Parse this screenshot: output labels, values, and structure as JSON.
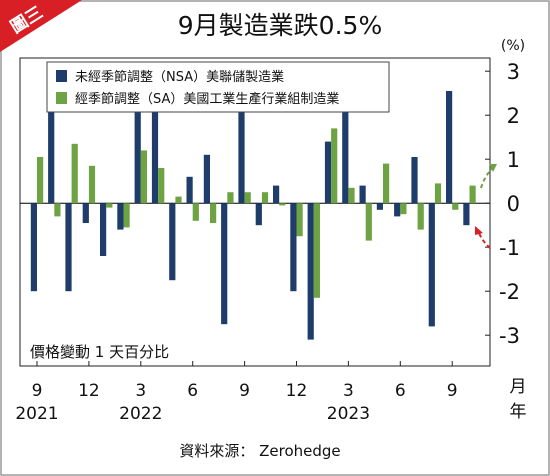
{
  "badge": "圖三",
  "chart_data": {
    "type": "bar",
    "title": "9月製造業跌0.5%",
    "unit_label": "(%)",
    "note": "價格變動 1 天百分比",
    "source": "資料來源： Zerohedge",
    "axis_month_label": "月",
    "axis_year_label": "年",
    "ylim": [
      -3.7,
      3.3
    ],
    "yticks": [
      3,
      2,
      1,
      0,
      -1,
      -2,
      -3
    ],
    "x_month_ticks": [
      {
        "index": 0,
        "label": "9"
      },
      {
        "index": 3,
        "label": "12"
      },
      {
        "index": 6,
        "label": "3"
      },
      {
        "index": 9,
        "label": "6"
      },
      {
        "index": 12,
        "label": "9"
      },
      {
        "index": 15,
        "label": "12"
      },
      {
        "index": 18,
        "label": "3"
      },
      {
        "index": 21,
        "label": "6"
      },
      {
        "index": 24,
        "label": "9"
      }
    ],
    "x_year_ticks": [
      {
        "index": 0,
        "label": "2021"
      },
      {
        "index": 6,
        "label": "2022"
      },
      {
        "index": 18,
        "label": "2023"
      }
    ],
    "months": [
      "2021-08",
      "2021-09",
      "2021-10",
      "2021-11",
      "2021-12",
      "2022-01",
      "2022-02",
      "2022-03",
      "2022-04",
      "2022-05",
      "2022-06",
      "2022-07",
      "2022-08",
      "2022-09",
      "2022-10",
      "2022-11",
      "2022-12",
      "2023-01",
      "2023-02",
      "2023-03",
      "2023-04",
      "2023-05",
      "2023-06",
      "2023-07",
      "2023-08",
      "2023-09"
    ],
    "series": [
      {
        "name": "未經季節調整（NSA）美聯儲製造業",
        "color": "#1f3d6b",
        "values": [
          -2.0,
          2.4,
          -2.0,
          -0.45,
          -1.2,
          -0.6,
          2.4,
          2.15,
          -1.75,
          0.6,
          1.1,
          -2.75,
          2.35,
          -0.5,
          0.4,
          -2.0,
          -3.1,
          1.4,
          2.1,
          0.4,
          -0.15,
          -0.3,
          1.05,
          -2.8,
          2.55,
          -0.5
        ]
      },
      {
        "name": "經季節調整（SA）美國工業生產行業組制造業",
        "color": "#6ea343",
        "values": [
          1.05,
          -0.3,
          1.35,
          0.85,
          -0.1,
          -0.55,
          1.2,
          0.8,
          0.15,
          -0.4,
          -0.45,
          0.25,
          0.25,
          0.25,
          -0.05,
          -0.75,
          -2.15,
          1.7,
          0.35,
          -0.85,
          0.9,
          -0.25,
          -0.6,
          0.45,
          -0.15,
          0.4
        ]
      }
    ],
    "legend_position": "top-left",
    "grid": false,
    "annotations": [
      "red dashed arrow pointing to September 2023 NSA bar",
      "green dashed arrow pointing to September 2023 SA bar"
    ]
  }
}
